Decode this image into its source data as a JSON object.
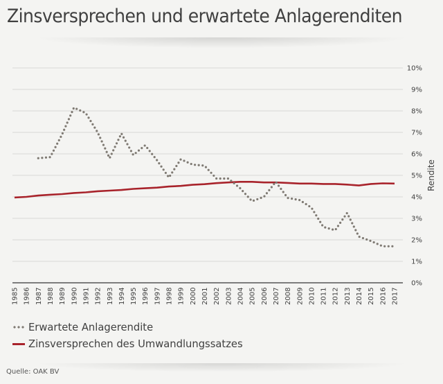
{
  "header": {
    "title": "Zinsversprechen und erwartete Anlagerenditen"
  },
  "colors": {
    "background": "#f4f4f2",
    "grid": "#d9d9d7",
    "axis": "#555555",
    "expected_return": "#7f7a73",
    "interest_promise": "#a8232b"
  },
  "chart_data": {
    "type": "line",
    "title": "Zinsversprechen und erwartete Anlagerenditen",
    "xlabel": "",
    "ylabel": "Rendite",
    "ylim": [
      0,
      10
    ],
    "y_ticks": [
      0,
      1,
      2,
      3,
      4,
      5,
      6,
      7,
      8,
      9,
      10
    ],
    "y_tick_labels": [
      "0%",
      "1%",
      "2%",
      "3%",
      "4%",
      "5%",
      "6%",
      "7%",
      "8%",
      "9%",
      "10%"
    ],
    "y_axis_position": "right",
    "grid": true,
    "legend_position": "bottom-left",
    "x": [
      "1985",
      "1986",
      "1987",
      "1988",
      "1989",
      "1990",
      "1991",
      "1992",
      "1993",
      "1994",
      "1995",
      "1996",
      "1997",
      "1998",
      "1999",
      "2000",
      "2001",
      "2002",
      "2003",
      "2004",
      "2005",
      "2006",
      "2007",
      "2008",
      "2009",
      "2010",
      "2011",
      "2012",
      "2013",
      "2014",
      "2015",
      "2016",
      "2017"
    ],
    "series": [
      {
        "name": "Erwartete Anlagerendite",
        "style": "dotted",
        "values": [
          null,
          null,
          5.8,
          5.85,
          6.9,
          8.15,
          7.9,
          7.0,
          5.8,
          6.95,
          5.95,
          6.4,
          5.7,
          4.9,
          5.75,
          5.5,
          5.45,
          4.85,
          4.85,
          4.4,
          3.8,
          4.0,
          4.7,
          3.95,
          3.85,
          3.5,
          2.6,
          2.45,
          3.25,
          2.15,
          1.95,
          1.7,
          1.7
        ]
      },
      {
        "name": "Zinsversprechen des Umwandlungssatzes",
        "style": "solid",
        "values": [
          3.97,
          4.0,
          4.06,
          4.1,
          4.13,
          4.18,
          4.21,
          4.26,
          4.29,
          4.32,
          4.37,
          4.4,
          4.43,
          4.48,
          4.51,
          4.56,
          4.59,
          4.64,
          4.67,
          4.7,
          4.7,
          4.67,
          4.67,
          4.65,
          4.62,
          4.62,
          4.6,
          4.6,
          4.57,
          4.53,
          4.6,
          4.63,
          4.62
        ]
      }
    ]
  },
  "legend": {
    "items": [
      {
        "label": "Erwartete Anlagerendite",
        "style": "dotted"
      },
      {
        "label": "Zinsversprechen des Umwandlungssatzes",
        "style": "solid"
      }
    ]
  },
  "footer": {
    "source": "Quelle: OAK BV"
  }
}
